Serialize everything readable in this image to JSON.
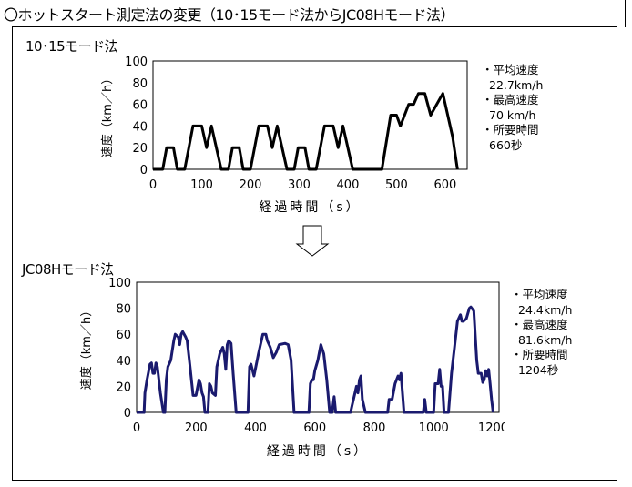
{
  "title": "〇ホットスタート測定法の変更（10･15モード法からJC08Hモード法）",
  "chart_data": [
    {
      "type": "line",
      "title": "10･15モード法",
      "xlabel": "経過時間（s）",
      "ylabel": "速度（km／h）",
      "xlim": [
        0,
        645
      ],
      "ylim": [
        0,
        100
      ],
      "xticks": [
        0,
        100,
        200,
        300,
        400,
        500,
        600
      ],
      "yticks": [
        0,
        20,
        40,
        60,
        80,
        100
      ],
      "grid": false,
      "color": "#000000",
      "x": [
        0,
        20,
        28,
        42,
        50,
        65,
        82,
        100,
        110,
        120,
        140,
        155,
        163,
        177,
        185,
        200,
        217,
        235,
        245,
        255,
        275,
        290,
        298,
        312,
        320,
        335,
        352,
        370,
        380,
        390,
        410,
        470,
        488,
        500,
        508,
        525,
        535,
        545,
        558,
        570,
        595,
        615,
        625
      ],
      "y": [
        0,
        0,
        20,
        20,
        0,
        0,
        40,
        40,
        20,
        40,
        0,
        0,
        20,
        20,
        0,
        0,
        40,
        40,
        20,
        40,
        0,
        0,
        20,
        20,
        0,
        0,
        40,
        40,
        20,
        40,
        0,
        0,
        50,
        50,
        40,
        60,
        60,
        70,
        70,
        50,
        70,
        30,
        0
      ],
      "stats": [
        {
          "label": "・平均速度",
          "value": "22.7km/h"
        },
        {
          "label": "・最高速度",
          "value": "70 km/h"
        },
        {
          "label": "・所要時間",
          "value": "660秒"
        }
      ]
    },
    {
      "type": "line",
      "title": "JC08Hモード法",
      "xlabel": "経過時間（s）",
      "ylabel": "速度（km／h）",
      "xlim": [
        0,
        1220
      ],
      "ylim": [
        0,
        100
      ],
      "xticks": [
        0,
        200,
        400,
        600,
        800,
        1000,
        1200
      ],
      "yticks": [
        0,
        20,
        40,
        60,
        80,
        100
      ],
      "grid": false,
      "color": "#1a1a6e",
      "x": [
        0,
        25,
        28,
        35,
        45,
        50,
        55,
        60,
        65,
        70,
        80,
        90,
        95,
        100,
        105,
        115,
        125,
        130,
        140,
        145,
        150,
        155,
        165,
        170,
        180,
        190,
        200,
        210,
        215,
        220,
        225,
        230,
        240,
        245,
        250,
        255,
        265,
        270,
        280,
        290,
        295,
        300,
        305,
        310,
        318,
        325,
        335,
        375,
        380,
        385,
        395,
        410,
        425,
        435,
        440,
        450,
        460,
        470,
        480,
        500,
        510,
        520,
        530,
        580,
        585,
        590,
        595,
        600,
        610,
        620,
        630,
        640,
        650,
        658,
        665,
        670,
        720,
        725,
        735,
        740,
        745,
        750,
        755,
        760,
        770,
        845,
        850,
        860,
        870,
        880,
        885,
        890,
        900,
        965,
        970,
        975,
        1000,
        1005,
        1015,
        1020,
        1025,
        1030,
        1035,
        1050,
        1060,
        1070,
        1080,
        1090,
        1095,
        1100,
        1110,
        1120,
        1125,
        1135,
        1145,
        1150,
        1160,
        1165,
        1170,
        1175,
        1180,
        1185,
        1190,
        1195,
        1200
      ],
      "y": [
        0,
        0,
        15,
        25,
        37,
        38,
        30,
        30,
        38,
        35,
        15,
        0,
        0,
        25,
        35,
        40,
        55,
        60,
        58,
        52,
        60,
        62,
        58,
        55,
        35,
        13,
        13,
        25,
        22,
        15,
        12,
        0,
        0,
        22,
        20,
        15,
        13,
        35,
        45,
        50,
        45,
        33,
        52,
        55,
        53,
        30,
        0,
        0,
        35,
        37,
        28,
        45,
        60,
        60,
        55,
        50,
        42,
        46,
        52,
        53,
        52,
        40,
        0,
        0,
        22,
        25,
        25,
        32,
        40,
        52,
        45,
        25,
        0,
        0,
        12,
        0,
        0,
        5,
        15,
        20,
        15,
        25,
        28,
        10,
        0,
        0,
        10,
        10,
        22,
        28,
        25,
        30,
        0,
        0,
        10,
        0,
        0,
        22,
        22,
        33,
        20,
        20,
        0,
        0,
        30,
        50,
        70,
        75,
        70,
        70,
        72,
        80,
        81,
        78,
        40,
        30,
        30,
        23,
        25,
        32,
        28,
        33,
        22,
        10,
        0
      ],
      "stats": [
        {
          "label": "・平均速度",
          "value": "24.4km/h"
        },
        {
          "label": "・最高速度",
          "value": "81.6km/h"
        },
        {
          "label": "・所要時間",
          "value": "1204秒"
        }
      ]
    }
  ]
}
